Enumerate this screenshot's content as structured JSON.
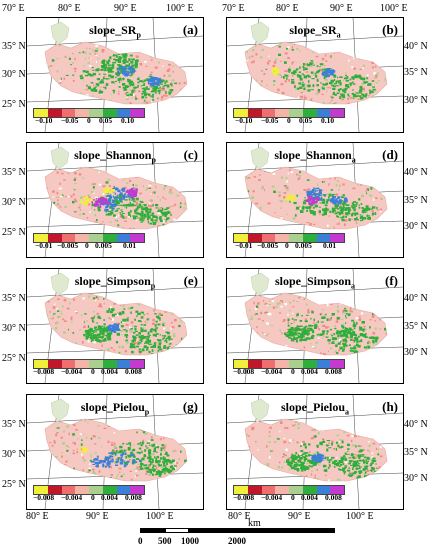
{
  "top_lon_labels": [
    "70° E",
    "80° E",
    "90° E",
    "100° E",
    "70° E",
    "80° E",
    "90° E",
    "100° E"
  ],
  "bottom_lon_labels": [
    "80° E",
    "90° E",
    "100° E",
    "80° E",
    "90° E",
    "100° E"
  ],
  "left_lat_labels": {
    "row1": [
      "35° N",
      "30° N",
      "25° N"
    ],
    "row2": [
      "35° N",
      "30° N",
      "25° N"
    ],
    "row3": [
      "35° N",
      "30° N",
      "25° N"
    ],
    "row4": [
      "35° N",
      "30° N",
      "25° N"
    ]
  },
  "right_lat_labels": {
    "row1": [
      "40° N",
      "35° N",
      "30° N"
    ],
    "row2": [
      "40° N",
      "35° N",
      "30° N"
    ],
    "row3": [
      "40° N",
      "35° N",
      "30° N"
    ],
    "row4": [
      "40° N",
      "35° N",
      "30° N"
    ]
  },
  "legend_colors": [
    "#f2ef3a",
    "#c0182a",
    "#ef6f6f",
    "#f4b5a8",
    "#a9d08e",
    "#2eae3a",
    "#3b7fd8",
    "#c43ad0"
  ],
  "panels": [
    {
      "title": "slope_SR",
      "sub": "p",
      "letter": "(a)",
      "ticks": [
        "−0.10",
        "−0.05",
        "0",
        "0.05",
        "0.10"
      ]
    },
    {
      "title": "slope_SR",
      "sub": "a",
      "letter": "(b)",
      "ticks": [
        "−0.10",
        "−0.05",
        "0",
        "0.05",
        "0.10"
      ]
    },
    {
      "title": "slope_Shannon",
      "sub": "p",
      "letter": "(c)",
      "ticks": [
        "−0.01",
        "−0.005",
        "0",
        "0.005",
        "0.01"
      ]
    },
    {
      "title": "slope_Shannon",
      "sub": "a",
      "letter": "(d)",
      "ticks": [
        "−0.01",
        "−0.005",
        "0",
        "0.005",
        "0.01"
      ]
    },
    {
      "title": "slope_Simpson",
      "sub": "p",
      "letter": "(e)",
      "ticks": [
        "−0.008",
        "−0.004",
        "0",
        "0.004",
        "0.008"
      ]
    },
    {
      "title": "slope_Simpson",
      "sub": "a",
      "letter": "(f)",
      "ticks": [
        "−0.008",
        "−0.004",
        "0",
        "0.004",
        "0.008"
      ]
    },
    {
      "title": "slope_Pielou",
      "sub": "p",
      "letter": "(g)",
      "ticks": [
        "−0.008",
        "−0.004",
        "0",
        "0.004",
        "0.008"
      ]
    },
    {
      "title": "slope_Pielou",
      "sub": "a",
      "letter": "(h)",
      "ticks": [
        "−0.008",
        "−0.004",
        "0",
        "0.004",
        "0.008"
      ]
    }
  ],
  "scale_bar": {
    "ticks": [
      "0",
      "500",
      "1000",
      "2000"
    ],
    "unit": "km"
  }
}
